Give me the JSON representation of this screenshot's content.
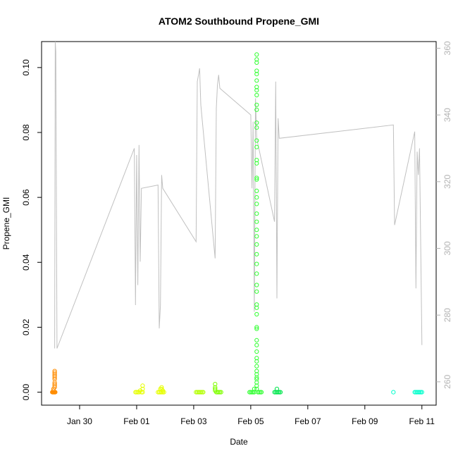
{
  "chart_data": {
    "type": "scatter",
    "title": "ATOM2 Southbound Propene_GMI",
    "xlabel": "Date",
    "ylabel": "Propene_GMI",
    "x_axis": {
      "type": "date",
      "range": [
        "2017-01-28T16:00",
        "2017-02-11T12:00"
      ],
      "ticks": [
        {
          "x": "2017-01-30",
          "label": "Jan 30"
        },
        {
          "x": "2017-02-01",
          "label": "Feb 01"
        },
        {
          "x": "2017-02-03",
          "label": "Feb 03"
        },
        {
          "x": "2017-02-05",
          "label": "Feb 05"
        },
        {
          "x": "2017-02-07",
          "label": "Feb 07"
        },
        {
          "x": "2017-02-09",
          "label": "Feb 09"
        },
        {
          "x": "2017-02-11",
          "label": "Feb 11"
        }
      ]
    },
    "y_axis_left": {
      "range": [
        -0.004,
        0.108
      ],
      "ticks": [
        0.0,
        0.02,
        0.04,
        0.06,
        0.08,
        0.1
      ],
      "tick_labels": [
        "0.00",
        "0.02",
        "0.04",
        "0.06",
        "0.08",
        "0.10"
      ]
    },
    "y_axis_right": {
      "range": [
        253,
        362
      ],
      "ticks": [
        260,
        280,
        300,
        320,
        340,
        360
      ],
      "tick_labels": [
        "260",
        "280",
        "300",
        "320",
        "340",
        "360"
      ],
      "color": "#b3b3b3"
    },
    "marker": "open-circle",
    "series": [
      {
        "color": "#ff8c00",
        "x": [
          "2017-01-29T03:00",
          "2017-01-29T03:00",
          "2017-01-29T03:00",
          "2017-01-29T03:00",
          "2017-01-29T03:00",
          "2017-01-29T03:00",
          "2017-01-29T03:00",
          "2017-01-29T03:00",
          "2017-01-29T03:00",
          "2017-01-29T03:00",
          "2017-01-29T02:00",
          "2017-01-29T02:00"
        ],
        "y": [
          0.0065,
          0.006,
          0.0055,
          0.005,
          0.0045,
          0.004,
          0.003,
          0.0025,
          0.002,
          0.0015,
          0.001,
          0.0005
        ]
      },
      {
        "color": "#ff8c00",
        "x": [
          "2017-01-29T01:00",
          "2017-01-29T01:30",
          "2017-01-29T02:00",
          "2017-01-29T02:30",
          "2017-01-29T03:00",
          "2017-01-29T03:30"
        ],
        "y": [
          0.0,
          0.0,
          0.0,
          0.0,
          0.0,
          0.0
        ]
      },
      {
        "color": "#e6ff00",
        "x": [
          "2017-01-31T23:00",
          "2017-02-01T00:00",
          "2017-02-01T01:00",
          "2017-02-01T02:00",
          "2017-02-01T03:00",
          "2017-02-01T04:00",
          "2017-02-01T05:00",
          "2017-02-01T05:00",
          "2017-02-01T05:00"
        ],
        "y": [
          0.0,
          0.0,
          0.0,
          0.0,
          0.0005,
          0.0,
          0.0,
          0.001,
          0.002
        ]
      },
      {
        "color": "#e6ff00",
        "x": [
          "2017-02-01T18:00",
          "2017-02-01T19:00",
          "2017-02-01T20:00",
          "2017-02-01T21:00",
          "2017-02-01T22:00",
          "2017-02-01T23:00",
          "2017-02-01T20:00",
          "2017-02-01T21:00",
          "2017-02-01T22:00",
          "2017-02-01T21:00"
        ],
        "y": [
          0.0,
          0.0,
          0.0,
          0.0,
          0.0,
          0.0,
          0.001,
          0.001,
          0.0005,
          0.0015
        ]
      },
      {
        "color": "#b3ff00",
        "x": [
          "2017-02-03T02:00",
          "2017-02-03T03:00",
          "2017-02-03T04:00",
          "2017-02-03T05:00",
          "2017-02-03T06:00",
          "2017-02-03T07:00",
          "2017-02-03T08:00"
        ],
        "y": [
          0.0,
          0.0,
          0.0,
          0.0,
          0.0,
          0.0,
          0.0
        ]
      },
      {
        "color": "#80ff00",
        "x": [
          "2017-02-03T18:00",
          "2017-02-03T18:00",
          "2017-02-03T18:00",
          "2017-02-03T18:00",
          "2017-02-03T19:00",
          "2017-02-03T20:00",
          "2017-02-03T21:00",
          "2017-02-03T22:00",
          "2017-02-03T23:00"
        ],
        "y": [
          0.0025,
          0.0015,
          0.001,
          0.0005,
          0.0,
          0.0,
          0.0,
          0.0,
          0.0
        ]
      },
      {
        "color": "#33ff33",
        "x": [
          "2017-02-04T23:00",
          "2017-02-05T00:00",
          "2017-02-05T01:00",
          "2017-02-05T02:00",
          "2017-02-05T03:00",
          "2017-02-05T06:00",
          "2017-02-05T07:00",
          "2017-02-05T08:00",
          "2017-02-05T09:00",
          "2017-02-05T03:00",
          "2017-02-05T05:00"
        ],
        "y": [
          0.0,
          0.0,
          0.0,
          0.0,
          0.0,
          0.0,
          0.0,
          0.0,
          0.0,
          0.001,
          0.001
        ]
      },
      {
        "color": "#33ff33",
        "x": [
          "2017-02-05T05:00",
          "2017-02-05T05:00",
          "2017-02-05T05:00",
          "2017-02-05T05:00",
          "2017-02-05T05:00",
          "2017-02-05T05:00",
          "2017-02-05T05:00",
          "2017-02-05T05:00",
          "2017-02-05T05:00",
          "2017-02-05T05:00",
          "2017-02-05T05:00",
          "2017-02-05T05:00",
          "2017-02-05T05:00",
          "2017-02-05T05:00",
          "2017-02-05T05:00",
          "2017-02-05T05:00",
          "2017-02-05T05:00",
          "2017-02-05T05:00",
          "2017-02-05T05:00",
          "2017-02-05T05:00",
          "2017-02-05T05:00",
          "2017-02-05T05:00",
          "2017-02-05T05:00",
          "2017-02-05T05:00",
          "2017-02-05T05:00",
          "2017-02-05T05:00",
          "2017-02-05T05:00",
          "2017-02-05T05:00",
          "2017-02-05T05:00",
          "2017-02-05T05:00",
          "2017-02-05T05:00",
          "2017-02-05T05:00",
          "2017-02-05T05:00",
          "2017-02-05T05:00",
          "2017-02-05T05:00",
          "2017-02-05T05:00",
          "2017-02-05T05:00",
          "2017-02-05T05:00",
          "2017-02-05T05:00",
          "2017-02-05T05:00",
          "2017-02-05T05:00",
          "2017-02-05T05:00",
          "2017-02-05T05:00",
          "2017-02-05T05:00",
          "2017-02-05T05:00",
          "2017-02-05T05:00",
          "2017-02-05T05:00",
          "2017-02-05T05:00",
          "2017-02-05T05:00"
        ],
        "y": [
          0.104,
          0.1025,
          0.1015,
          0.099,
          0.098,
          0.096,
          0.094,
          0.093,
          0.0915,
          0.0885,
          0.087,
          0.083,
          0.0815,
          0.0775,
          0.0755,
          0.0715,
          0.0705,
          0.066,
          0.0655,
          0.062,
          0.06,
          0.058,
          0.055,
          0.0525,
          0.05,
          0.048,
          0.0455,
          0.0425,
          0.0395,
          0.0365,
          0.033,
          0.031,
          0.027,
          0.026,
          0.024,
          0.02,
          0.0195,
          0.016,
          0.0145,
          0.0125,
          0.0105,
          0.0095,
          0.008,
          0.0065,
          0.0055,
          0.0045,
          0.004,
          0.003,
          0.002
        ]
      },
      {
        "color": "#00e64d",
        "x": [
          "2017-02-05T20:00",
          "2017-02-05T21:00",
          "2017-02-05T22:00",
          "2017-02-05T23:00",
          "2017-02-06T00:00",
          "2017-02-06T01:00",
          "2017-02-05T22:00"
        ],
        "y": [
          0.0,
          0.0,
          0.0,
          0.0,
          0.0,
          0.0,
          0.001
        ]
      },
      {
        "color": "#00ffcc",
        "x": [
          "2017-02-10T00:00"
        ],
        "y": [
          0.0
        ]
      },
      {
        "color": "#00ffcc",
        "x": [
          "2017-02-10T18:00",
          "2017-02-10T19:00",
          "2017-02-10T20:00",
          "2017-02-10T21:00",
          "2017-02-10T22:00",
          "2017-02-10T23:00",
          "2017-02-11T00:00"
        ],
        "y": [
          0.0,
          0.0,
          0.0,
          0.0,
          0.0,
          0.0,
          0.0
        ]
      }
    ],
    "right_series": {
      "color": "#c0c0c0",
      "type": "line",
      "x": [
        "2017-01-29T03:00",
        "2017-01-29T03:30",
        "2017-01-29T04:00",
        "2017-01-29T05:00",
        "2017-01-31T22:00",
        "2017-01-31T23:00",
        "2017-02-01T00:00",
        "2017-02-01T01:00",
        "2017-02-01T02:00",
        "2017-02-01T03:00",
        "2017-02-01T04:00",
        "2017-02-01T18:00",
        "2017-02-01T19:00",
        "2017-02-01T20:00",
        "2017-02-01T21:00",
        "2017-02-01T22:00",
        "2017-02-03T02:00",
        "2017-02-03T03:00",
        "2017-02-03T04:00",
        "2017-02-03T05:00",
        "2017-02-03T06:00",
        "2017-02-03T18:00",
        "2017-02-03T19:00",
        "2017-02-03T20:00",
        "2017-02-03T21:00",
        "2017-02-03T22:00",
        "2017-02-05T00:00",
        "2017-02-05T01:00",
        "2017-02-05T02:00",
        "2017-02-05T03:00",
        "2017-02-05T04:00",
        "2017-02-05T05:00",
        "2017-02-05T20:00",
        "2017-02-05T21:00",
        "2017-02-05T22:00",
        "2017-02-05T23:00",
        "2017-02-06T00:00",
        "2017-02-10T00:00",
        "2017-02-10T01:00",
        "2017-02-10T18:00",
        "2017-02-10T19:00",
        "2017-02-10T20:00",
        "2017-02-10T21:00",
        "2017-02-10T22:00",
        "2017-02-11T00:00"
      ],
      "y": [
        270,
        362,
        359,
        270,
        330,
        283,
        328,
        289,
        331,
        296,
        318,
        319,
        276,
        283,
        322,
        318,
        302,
        350,
        352,
        354,
        343,
        297,
        342,
        349,
        352,
        348,
        340,
        318,
        338,
        281,
        345,
        333,
        308,
        350,
        285,
        339,
        333,
        337,
        307,
        335,
        288,
        329,
        322,
        330,
        271
      ]
    }
  }
}
